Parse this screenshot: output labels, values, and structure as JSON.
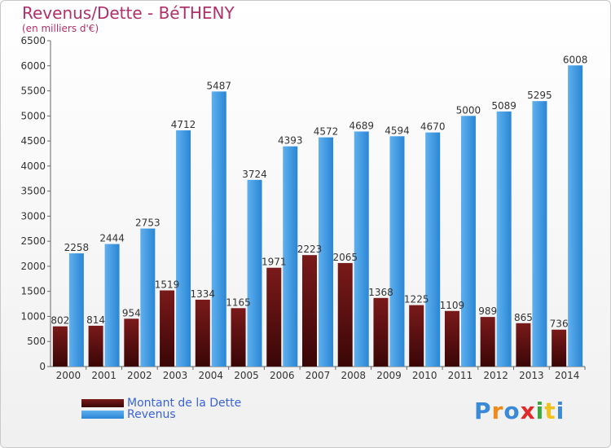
{
  "title": "Revenus/Dette - BéTHENY",
  "subtitle": "(en milliers d'€)",
  "colors": {
    "dette_top": "#7a1a1a",
    "dette_bottom": "#3a0606",
    "revenus_top": "#5fb0ee",
    "revenus_bottom": "#2a86d4",
    "title": "#b0306a",
    "legend_text": "#3a63d8"
  },
  "logo": {
    "text": "Proxiti",
    "letter_colors": [
      "#3a8ad8",
      "#f08a1a",
      "#3a8ad8",
      "#e02a2a",
      "#3aa83a",
      "#f0c21a",
      "#3a8ad8"
    ]
  },
  "chart_data": {
    "type": "bar",
    "title": "Revenus/Dette - BéTHENY",
    "subtitle": "(en milliers d'€)",
    "categories": [
      "2000",
      "2001",
      "2002",
      "2003",
      "2004",
      "2005",
      "2006",
      "2007",
      "2008",
      "2009",
      "2010",
      "2011",
      "2012",
      "2013",
      "2014"
    ],
    "series": [
      {
        "name": "Montant de la Dette",
        "values": [
          802,
          814,
          954,
          1519,
          1334,
          1165,
          1971,
          2223,
          2065,
          1368,
          1225,
          1109,
          989,
          865,
          736
        ],
        "labels": [
          "802",
          "814",
          "954",
          "1519",
          "1334",
          "1165",
          "1971",
          "2223",
          "2065",
          "1368",
          "1225",
          "1109",
          "989",
          "865",
          "736"
        ]
      },
      {
        "name": "Revenus",
        "values": [
          2258,
          2444,
          2753,
          4712,
          5487,
          3724,
          4393,
          4572,
          4689,
          4594,
          4670,
          5000,
          5089,
          5295,
          6008
        ],
        "labels": [
          "2258",
          "2444",
          "2753",
          "4712",
          "5487",
          "3724",
          "4393",
          "4572",
          "4689",
          "4594",
          "4670",
          "5000",
          "5089",
          "5295",
          "6008"
        ]
      }
    ],
    "ylim": [
      0,
      6500
    ],
    "yticks": [
      0,
      500,
      1000,
      1500,
      2000,
      2500,
      3000,
      3500,
      4000,
      4500,
      5000,
      5500,
      6000,
      6500
    ],
    "grid": false,
    "legend_position": "bottom-left"
  }
}
